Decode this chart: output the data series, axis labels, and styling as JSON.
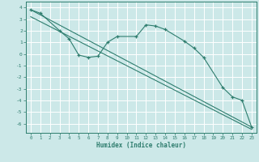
{
  "xlabel": "Humidex (Indice chaleur)",
  "bg_color": "#cce8e8",
  "grid_color": "#ffffff",
  "line_color": "#2e7d6e",
  "xlim": [
    -0.5,
    23.5
  ],
  "ylim": [
    -6.8,
    4.5
  ],
  "xticks": [
    0,
    1,
    2,
    3,
    4,
    5,
    6,
    7,
    8,
    9,
    10,
    11,
    12,
    13,
    14,
    15,
    16,
    17,
    18,
    19,
    20,
    21,
    22,
    23
  ],
  "yticks": [
    -6,
    -5,
    -4,
    -3,
    -2,
    -1,
    0,
    1,
    2,
    3,
    4
  ],
  "data_x": [
    0,
    1,
    3,
    4,
    5,
    6,
    7,
    8,
    9,
    11,
    12,
    13,
    14,
    16,
    17,
    18,
    20,
    21,
    22,
    23
  ],
  "data_y": [
    3.8,
    3.5,
    2.0,
    1.3,
    -0.1,
    -0.3,
    -0.2,
    1.0,
    1.5,
    1.5,
    2.5,
    2.4,
    2.1,
    1.1,
    0.5,
    -0.3,
    -2.9,
    -3.7,
    -4.0,
    -6.3
  ],
  "line1_x": [
    0,
    23
  ],
  "line1_y": [
    3.8,
    -6.3
  ],
  "line2_x": [
    0,
    23
  ],
  "line2_y": [
    3.2,
    -6.5
  ]
}
